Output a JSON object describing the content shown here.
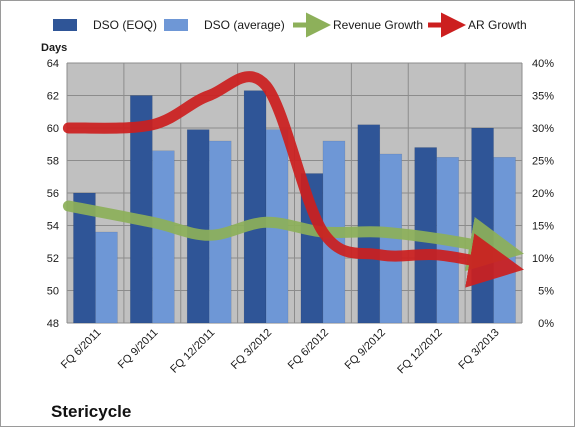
{
  "company_name": "Stericycle",
  "colors": {
    "dso_eoq": "#2f5597",
    "dso_average": "#6e97d6",
    "revenue_growth": "#8db05a",
    "ar_growth": "#cc1f1f",
    "plot_background": "#c0c0c0",
    "gridline": "#8c8c8c"
  },
  "chart_data": {
    "type": "bar",
    "categories": [
      "FQ 6/2011",
      "FQ 9/2011",
      "FQ 12/2011",
      "FQ 3/2012",
      "FQ 6/2012",
      "FQ 9/2012",
      "FQ 12/2012",
      "FQ 3/2013"
    ],
    "series": [
      {
        "name": "DSO (EOQ)",
        "type": "bar",
        "axis": "left",
        "values": [
          56.0,
          62.0,
          59.9,
          62.3,
          57.2,
          60.2,
          58.8,
          60.0
        ]
      },
      {
        "name": "DSO (average)",
        "type": "bar",
        "axis": "left",
        "values": [
          53.6,
          58.6,
          59.2,
          59.9,
          59.2,
          58.4,
          58.2,
          58.2
        ]
      },
      {
        "name": "Revenue Growth",
        "type": "line-arrow",
        "axis": "right",
        "values": [
          18.0,
          15.5,
          13.5,
          15.5,
          14.0,
          14.0,
          13.0,
          11.5
        ]
      },
      {
        "name": "AR Growth",
        "type": "line-arrow",
        "axis": "right",
        "values": [
          30.0,
          30.5,
          35.0,
          36.5,
          14.0,
          10.5,
          10.5,
          9.0
        ]
      }
    ],
    "ylabel": "Days",
    "ylim": [
      48,
      64
    ],
    "yticks": [
      "48",
      "50",
      "52",
      "54",
      "56",
      "58",
      "60",
      "62",
      "64"
    ],
    "y2lim": [
      0,
      40
    ],
    "y2ticks": [
      "0%",
      "5%",
      "10%",
      "15%",
      "20%",
      "25%",
      "30%",
      "35%",
      "40%"
    ],
    "grid": true,
    "legend_position": "top"
  }
}
